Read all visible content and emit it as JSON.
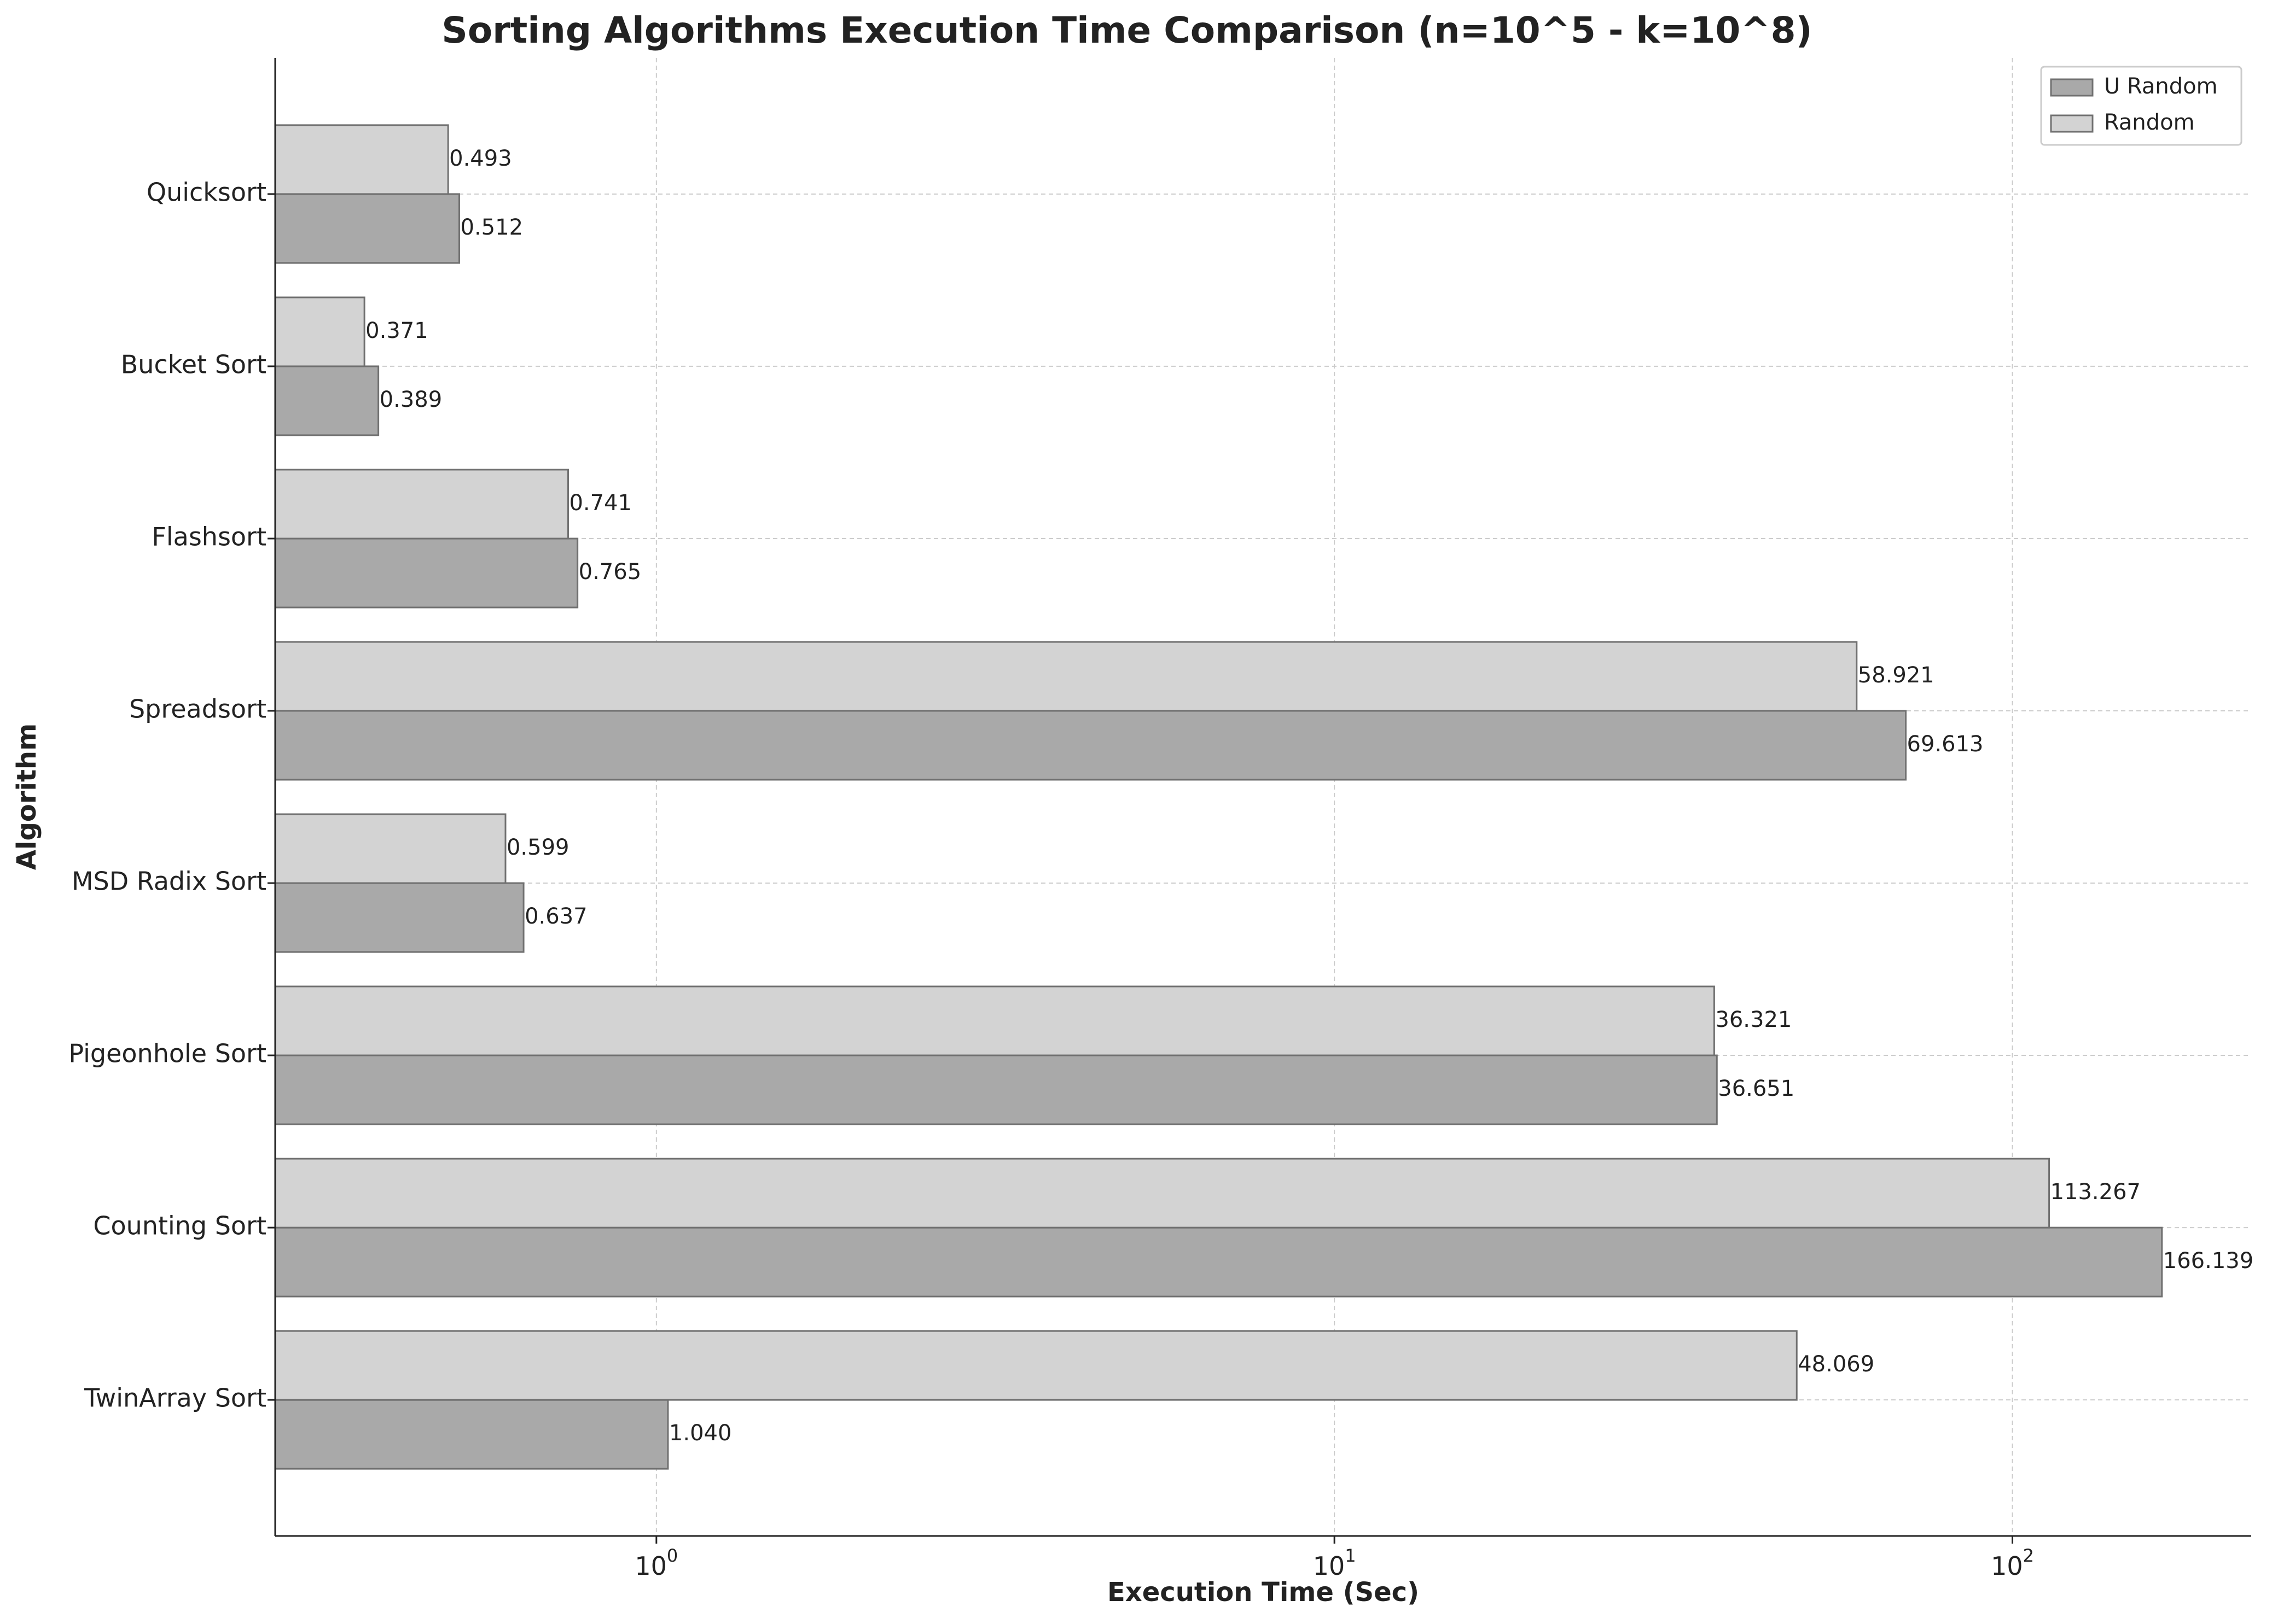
{
  "chart_data": {
    "type": "barh",
    "title": "Sorting Algorithms Execution Time Comparison (n=10^5 - k=10^8)",
    "x_label": "Execution Time (Sec)",
    "y_label": "Algorithm",
    "categories": [
      "Quicksort",
      "Bucket Sort",
      "Flashsort",
      "Spreadsort",
      "MSD Radix Sort",
      "Pigeonhole Sort",
      "Counting Sort",
      "TwinArray Sort"
    ],
    "series": [
      {
        "name": "U Random",
        "color": "#a9a9a9",
        "values": [
          0.512,
          0.389,
          0.765,
          69.613,
          0.637,
          36.651,
          166.139,
          1.04
        ],
        "value_labels": [
          "0.512",
          "0.389",
          "0.765",
          "69.613",
          "0.637",
          "36.651",
          "166.139",
          "1.040"
        ]
      },
      {
        "name": "Random",
        "color": "#d3d3d3",
        "values": [
          0.493,
          0.371,
          0.741,
          58.921,
          0.599,
          36.321,
          113.267,
          48.069
        ],
        "value_labels": [
          "0.493",
          "0.371",
          "0.741",
          "58.921",
          "0.599",
          "36.321",
          "113.267",
          "48.069"
        ]
      }
    ],
    "xscale": "log",
    "xlim": [
      0.274,
      225
    ],
    "xticks": [
      {
        "value": 1,
        "label": "10^0"
      },
      {
        "value": 10,
        "label": "10^1"
      },
      {
        "value": 100,
        "label": "10^2"
      }
    ],
    "grid": true,
    "legend": "upper right"
  }
}
